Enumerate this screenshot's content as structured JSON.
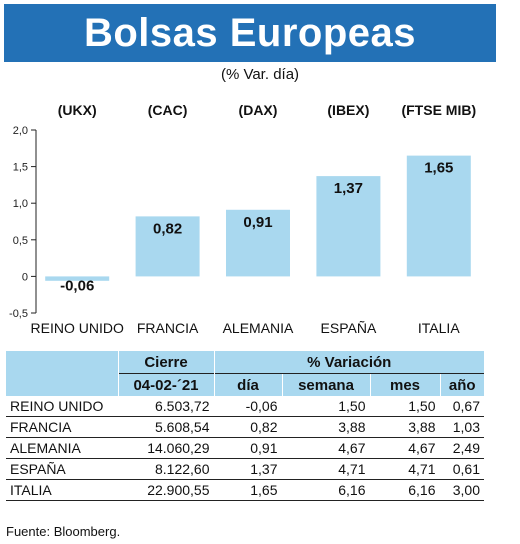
{
  "header": {
    "title": "Bolsas Europeas",
    "subtitle": "(% Var. día)"
  },
  "chart_data": {
    "type": "bar",
    "indices": [
      "(UKX)",
      "(CAC)",
      "(DAX)",
      "(IBEX)",
      "(FTSE MIB)"
    ],
    "categories": [
      "REINO UNIDO",
      "FRANCIA",
      "ALEMANIA",
      "ESPAÑA",
      "ITALIA"
    ],
    "values": [
      -0.06,
      0.82,
      0.91,
      1.37,
      1.65
    ],
    "value_labels": [
      "-0,06",
      "0,82",
      "0,91",
      "1,37",
      "1,65"
    ],
    "yticks": [
      2.0,
      1.5,
      1.0,
      0.5,
      0,
      -0.5
    ],
    "ytick_labels": [
      "2,0",
      "1,5",
      "1,0",
      "0,5",
      "0",
      "-0,5"
    ],
    "ylim": [
      -0.5,
      2.0
    ],
    "bar_color": "#a9d8ef",
    "grid": false
  },
  "table": {
    "head_cierre": "Cierre",
    "head_variacion": "% Variación",
    "head_date": "04-02-´21",
    "head_dia": "día",
    "head_semana": "semana",
    "head_mes": "mes",
    "head_anio": "año",
    "rows": [
      {
        "pais": "REINO UNIDO",
        "cierre": "6.503,72",
        "dia": "-0,06",
        "semana": "1,50",
        "mes": "1,50",
        "anio": "0,67"
      },
      {
        "pais": "FRANCIA",
        "cierre": "5.608,54",
        "dia": "0,82",
        "semana": "3,88",
        "mes": "3,88",
        "anio": "1,03"
      },
      {
        "pais": "ALEMANIA",
        "cierre": "14.060,29",
        "dia": "0,91",
        "semana": "4,67",
        "mes": "4,67",
        "anio": "2,49"
      },
      {
        "pais": "ESPAÑA",
        "cierre": "8.122,60",
        "dia": "1,37",
        "semana": "4,71",
        "mes": "4,71",
        "anio": "0,61"
      },
      {
        "pais": "ITALIA",
        "cierre": "22.900,55",
        "dia": "1,65",
        "semana": "6,16",
        "mes": "6,16",
        "anio": "3,00"
      }
    ]
  },
  "source": "Fuente: Bloomberg.",
  "colors": {
    "banner": "#2371b6",
    "accent": "#a9d8ef"
  }
}
